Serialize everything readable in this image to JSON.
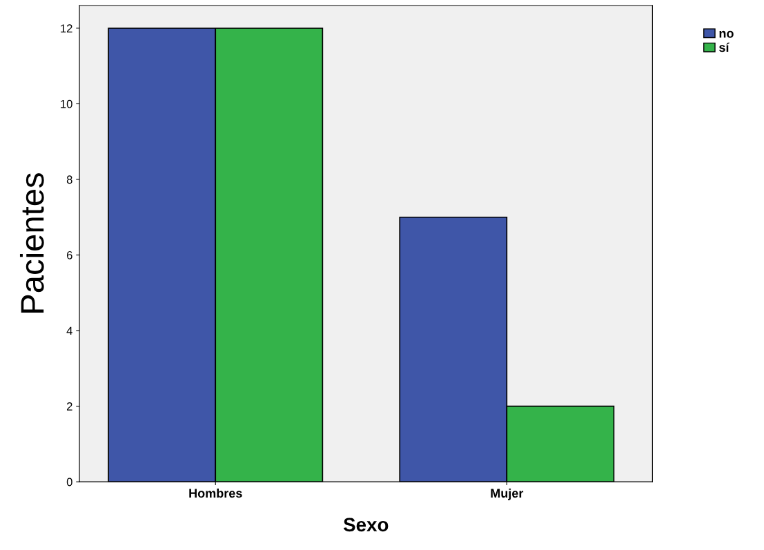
{
  "chart_data": {
    "type": "bar",
    "xlabel": "Sexo",
    "ylabel": "Pacientes",
    "categories": [
      "Hombres",
      "Mujer"
    ],
    "series": [
      {
        "name": "no",
        "color": "#3f56a8",
        "values": [
          12,
          7
        ]
      },
      {
        "name": "sí",
        "color": "#34b34a",
        "values": [
          12,
          2
        ]
      }
    ],
    "ylim": [
      0,
      12.6
    ],
    "yticks": [
      0,
      2,
      4,
      6,
      8,
      10,
      12
    ],
    "grid": false,
    "legend": "top right"
  }
}
